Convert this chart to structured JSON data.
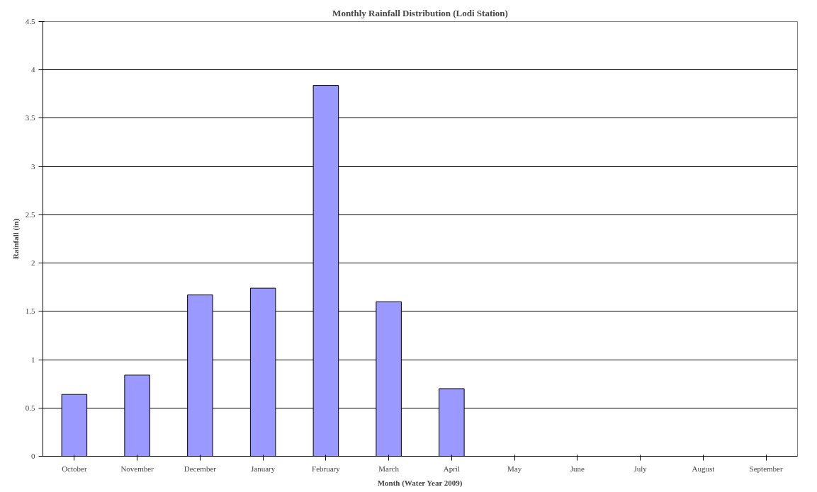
{
  "chart_data": {
    "type": "bar",
    "title": "Monthly Rainfall Distribution (Lodi Station)",
    "xlabel": "Month (Water Year 2009)",
    "ylabel": "Rainfall (in)",
    "categories": [
      "October",
      "November",
      "December",
      "January",
      "February",
      "March",
      "April",
      "May",
      "June",
      "July",
      "August",
      "September"
    ],
    "values": [
      0.64,
      0.84,
      1.67,
      1.74,
      3.84,
      1.6,
      0.7,
      null,
      null,
      null,
      null,
      null
    ],
    "color": "#9999ff",
    "ylim": [
      0,
      4.5
    ],
    "yticks": [
      0,
      0.5,
      1,
      1.5,
      2,
      2.5,
      3,
      3.5,
      4,
      4.5
    ],
    "grid": "y"
  }
}
